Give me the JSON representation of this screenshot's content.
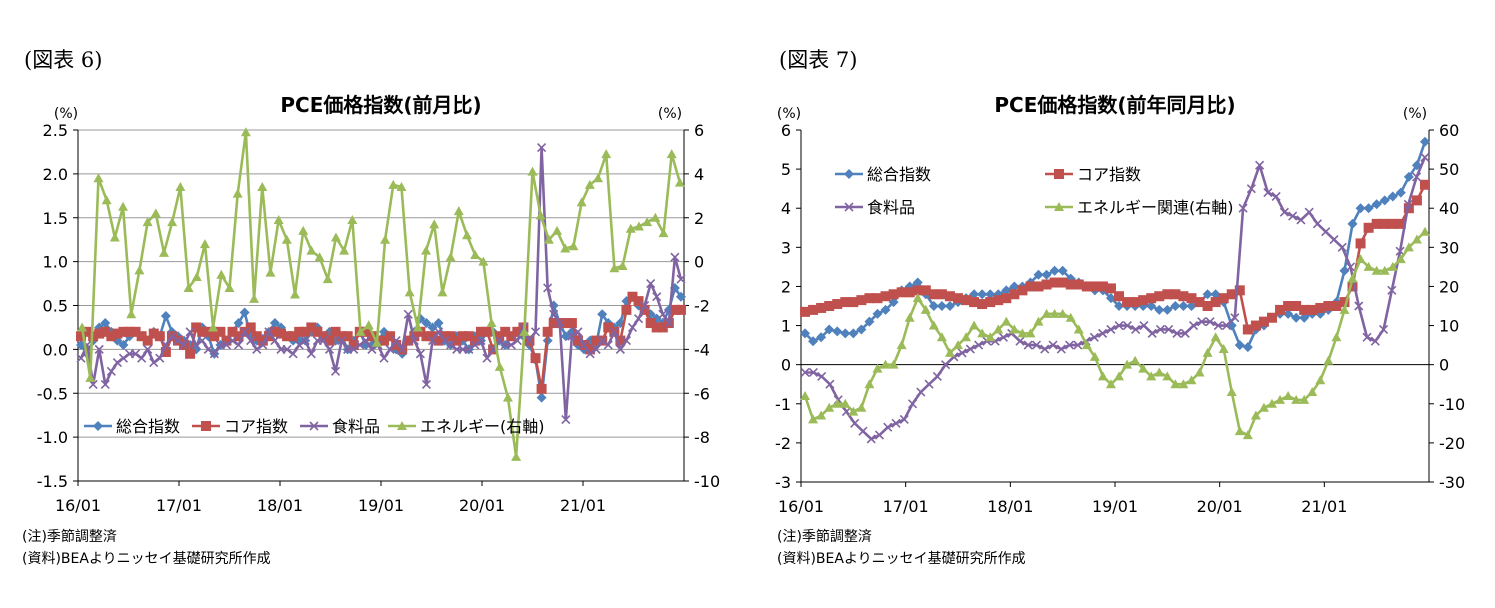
{
  "figures": [
    {
      "label": "(図表 6)",
      "notes": [
        "(注)季節調整済",
        "(資料)BEAよりニッセイ基礎研究所作成"
      ]
    },
    {
      "label": "(図表 7)",
      "notes": [
        "(注)季節調整済",
        "(資料)BEAよりニッセイ基礎研究所作成"
      ]
    }
  ],
  "chart_data": [
    {
      "type": "line",
      "title": "PCE価格指数(前月比)",
      "y_unit_left": "(%)",
      "y_unit_right": "(%)",
      "ylim": [
        -1.5,
        2.5
      ],
      "y2lim": [
        -10,
        6
      ],
      "yticks": [
        "2.5",
        "2.0",
        "1.5",
        "1.0",
        "0.5",
        "0.0",
        "-0.5",
        "-1.0",
        "-1.5"
      ],
      "y2ticks": [
        "6",
        "4",
        "2",
        "0",
        "-2",
        "-4",
        "-6",
        "-8",
        "-10"
      ],
      "xticks": [
        "16/01",
        "17/01",
        "18/01",
        "19/01",
        "20/01",
        "21/01"
      ],
      "grid": true,
      "legend": "bottom-left",
      "colors": {
        "総合指数": "#4f81bd",
        "コア指数": "#c0504d",
        "食料品": "#8064a2",
        "エネルギー": "#9bbb59"
      },
      "series": [
        {
          "name": "総合指数",
          "axis": "left",
          "marker": "diamond",
          "values": [
            0.05,
            -0.05,
            0.1,
            0.25,
            0.3,
            0.2,
            0.1,
            0.05,
            0.15,
            0.2,
            0.15,
            0.1,
            0.2,
            0.15,
            0.38,
            0.2,
            0.15,
            0.1,
            0.05,
            0.0,
            0.25,
            0.15,
            -0.05,
            0.05,
            0.1,
            0.2,
            0.3,
            0.42,
            0.15,
            0.1,
            0.12,
            0.2,
            0.3,
            0.25,
            0.15,
            0.1,
            0.1,
            0.1,
            0.2,
            0.25,
            0.15,
            0.2,
            0.1,
            0.15,
            0.0,
            0.1,
            0.2,
            0.05,
            0.05,
            0.1,
            0.2,
            0.15,
            0.0,
            -0.05,
            0.1,
            0.2,
            0.35,
            0.3,
            0.25,
            0.3,
            0.1,
            0.05,
            0.15,
            0.1,
            0.0,
            0.15,
            0.1,
            0.2,
            0.2,
            0.1,
            0.05,
            0.15,
            0.2,
            0.15,
            0.05,
            -0.12,
            -0.55,
            0.1,
            0.5,
            0.3,
            0.15,
            0.2,
            0.05,
            0.0,
            0.1,
            0.05,
            0.4,
            0.3,
            0.25,
            0.3,
            0.55,
            0.6,
            0.5,
            0.45,
            0.4,
            0.35,
            0.3,
            0.45,
            0.7,
            0.6
          ]
        },
        {
          "name": "コア指数",
          "axis": "left",
          "marker": "square",
          "values": [
            0.15,
            0.2,
            0.15,
            0.18,
            0.2,
            0.15,
            0.18,
            0.2,
            0.2,
            0.2,
            0.15,
            0.1,
            0.18,
            0.15,
            -0.03,
            0.15,
            0.1,
            0.05,
            -0.05,
            0.25,
            0.2,
            0.2,
            0.15,
            0.2,
            0.1,
            0.2,
            0.15,
            0.2,
            0.25,
            0.15,
            0.1,
            0.15,
            0.2,
            0.18,
            0.15,
            0.15,
            0.2,
            0.2,
            0.25,
            0.2,
            0.15,
            0.1,
            0.2,
            0.15,
            0.15,
            0.05,
            0.2,
            0.2,
            0.15,
            0.1,
            0.1,
            0.15,
            0.05,
            0.0,
            0.1,
            0.15,
            0.2,
            0.15,
            0.15,
            0.1,
            0.15,
            0.15,
            0.1,
            0.15,
            0.15,
            0.1,
            0.2,
            0.2,
            0.0,
            0.15,
            0.2,
            0.15,
            0.2,
            0.25,
            0.1,
            -0.1,
            -0.45,
            0.2,
            0.3,
            0.3,
            0.3,
            0.3,
            0.1,
            0.05,
            0.0,
            0.1,
            0.1,
            0.25,
            0.2,
            0.1,
            0.45,
            0.6,
            0.55,
            0.45,
            0.3,
            0.25,
            0.25,
            0.3,
            0.45,
            0.45
          ]
        },
        {
          "name": "食料品",
          "axis": "left",
          "marker": "x",
          "values": [
            -0.1,
            0.05,
            -0.4,
            0.0,
            -0.4,
            -0.25,
            -0.15,
            -0.1,
            -0.05,
            -0.05,
            -0.1,
            0.0,
            -0.15,
            -0.1,
            0.05,
            0.15,
            0.1,
            0.05,
            0.2,
            0.05,
            0.1,
            0.0,
            -0.05,
            0.05,
            0.05,
            0.1,
            0.05,
            0.2,
            0.1,
            0.0,
            0.05,
            0.2,
            0.1,
            0.0,
            0.0,
            -0.05,
            0.05,
            0.1,
            -0.05,
            0.1,
            0.1,
            0.0,
            -0.25,
            0.1,
            0.0,
            0.0,
            0.05,
            0.1,
            0.0,
            0.05,
            -0.1,
            0.0,
            0.1,
            0.0,
            0.4,
            0.1,
            -0.05,
            -0.4,
            0.1,
            0.2,
            0.1,
            0.05,
            0.0,
            0.0,
            0.0,
            0.05,
            0.1,
            -0.1,
            0.0,
            0.1,
            0.05,
            0.05,
            0.1,
            0.25,
            0.1,
            0.2,
            2.3,
            0.7,
            0.4,
            0.3,
            -0.8,
            0.15,
            0.2,
            0.05,
            -0.05,
            0.0,
            0.1,
            0.05,
            0.2,
            0.0,
            0.1,
            0.25,
            0.35,
            0.5,
            0.75,
            0.6,
            0.4,
            0.3,
            1.05,
            0.8
          ]
        },
        {
          "name": "エネルギー(右軸)",
          "axis": "right",
          "marker": "triangle",
          "values": [
            -3.0,
            -5.3,
            3.8,
            2.8,
            1.1,
            2.5,
            -2.4,
            -0.4,
            1.8,
            2.2,
            0.4,
            1.8,
            3.4,
            -1.2,
            -0.7,
            0.8,
            -3.0,
            -0.6,
            -1.2,
            3.1,
            5.9,
            -1.7,
            3.4,
            -0.5,
            1.9,
            1.0,
            -1.5,
            1.4,
            0.5,
            0.2,
            -0.8,
            1.1,
            0.5,
            1.9,
            -3.2,
            -2.9,
            -3.7,
            1.0,
            3.5,
            3.4,
            -1.4,
            -3.0,
            0.5,
            1.7,
            -1.4,
            0.2,
            2.3,
            1.2,
            0.3,
            0.0,
            -2.8,
            -4.8,
            -6.2,
            -8.9,
            -3.2,
            4.1,
            2.1,
            1.0,
            1.4,
            0.6,
            0.7,
            2.7,
            3.5,
            3.8,
            4.9,
            -0.3,
            -0.2,
            1.5,
            1.6,
            1.8,
            2.0,
            1.3,
            4.9,
            3.6
          ]
        }
      ]
    },
    {
      "type": "line",
      "title": "PCE価格指数(前年同月比)",
      "y_unit_left": "(%)",
      "y_unit_right": "(%)",
      "ylim": [
        -3,
        6
      ],
      "y2lim": [
        -30,
        60
      ],
      "yticks": [
        "6",
        "5",
        "4",
        "3",
        "2",
        "1",
        "0",
        "-1",
        "-2",
        "-3"
      ],
      "y2ticks": [
        "60",
        "50",
        "40",
        "30",
        "20",
        "10",
        "0",
        "-10",
        "-20",
        "-30"
      ],
      "xticks": [
        "16/01",
        "17/01",
        "18/01",
        "19/01",
        "20/01",
        "21/01"
      ],
      "grid": false,
      "legend": "top-left",
      "colors": {
        "総合指数": "#4f81bd",
        "コア指数": "#c0504d",
        "食料品": "#8064a2",
        "エネルギー": "#9bbb59"
      },
      "series": [
        {
          "name": "総合指数",
          "axis": "left",
          "marker": "diamond",
          "values": [
            0.8,
            0.6,
            0.7,
            0.9,
            0.85,
            0.8,
            0.8,
            0.9,
            1.1,
            1.3,
            1.4,
            1.6,
            1.9,
            2.0,
            2.1,
            1.8,
            1.5,
            1.5,
            1.5,
            1.6,
            1.7,
            1.8,
            1.8,
            1.8,
            1.8,
            1.9,
            2.0,
            2.0,
            2.1,
            2.3,
            2.3,
            2.4,
            2.4,
            2.2,
            2.1,
            2.0,
            1.9,
            1.9,
            1.7,
            1.5,
            1.5,
            1.5,
            1.5,
            1.5,
            1.4,
            1.4,
            1.5,
            1.5,
            1.5,
            1.6,
            1.8,
            1.8,
            1.6,
            1.0,
            0.5,
            0.45,
            0.9,
            1.0,
            1.2,
            1.3,
            1.3,
            1.2,
            1.2,
            1.3,
            1.3,
            1.4,
            1.6,
            2.4,
            3.6,
            4.0,
            4.0,
            4.1,
            4.2,
            4.3,
            4.4,
            4.8,
            5.1,
            5.7
          ]
        },
        {
          "name": "コア指数",
          "axis": "left",
          "marker": "square",
          "values": [
            1.35,
            1.4,
            1.45,
            1.5,
            1.55,
            1.6,
            1.6,
            1.65,
            1.7,
            1.7,
            1.75,
            1.8,
            1.85,
            1.85,
            1.9,
            1.9,
            1.8,
            1.8,
            1.75,
            1.7,
            1.65,
            1.6,
            1.55,
            1.6,
            1.65,
            1.7,
            1.8,
            1.9,
            2.0,
            2.0,
            2.05,
            2.1,
            2.1,
            2.05,
            2.05,
            2.0,
            2.0,
            2.0,
            1.95,
            1.75,
            1.6,
            1.6,
            1.65,
            1.7,
            1.75,
            1.8,
            1.8,
            1.75,
            1.7,
            1.6,
            1.5,
            1.6,
            1.7,
            1.8,
            1.9,
            0.9,
            1.0,
            1.1,
            1.2,
            1.4,
            1.5,
            1.5,
            1.4,
            1.4,
            1.45,
            1.5,
            1.5,
            1.6,
            2.0,
            3.1,
            3.5,
            3.6,
            3.6,
            3.6,
            3.6,
            4.0,
            4.2,
            4.6
          ]
        },
        {
          "name": "食料品",
          "axis": "left",
          "marker": "x",
          "values": [
            -0.2,
            -0.2,
            -0.3,
            -0.5,
            -0.9,
            -1.2,
            -1.5,
            -1.7,
            -1.9,
            -1.8,
            -1.6,
            -1.5,
            -1.4,
            -1.0,
            -0.7,
            -0.5,
            -0.3,
            0.0,
            0.2,
            0.3,
            0.4,
            0.5,
            0.6,
            0.6,
            0.7,
            0.8,
            0.6,
            0.5,
            0.5,
            0.4,
            0.5,
            0.4,
            0.5,
            0.5,
            0.6,
            0.7,
            0.8,
            0.9,
            1.0,
            1.0,
            0.9,
            1.0,
            0.8,
            0.9,
            0.9,
            0.8,
            0.8,
            1.0,
            1.1,
            1.1,
            1.0,
            1.0,
            1.2,
            4.0,
            4.5,
            5.1,
            4.4,
            4.3,
            3.9,
            3.8,
            3.7,
            3.9,
            3.6,
            3.4,
            3.2,
            3.0,
            2.5,
            1.5,
            0.7,
            0.6,
            0.9,
            1.9,
            2.9,
            4.1,
            4.8,
            5.3
          ]
        },
        {
          "name": "エネルギー関連(右軸)",
          "axis": "right",
          "marker": "triangle",
          "values": [
            -8,
            -14,
            -13,
            -11,
            -10,
            -10,
            -12,
            -11,
            -5,
            -1,
            0,
            0,
            5,
            12,
            17,
            14,
            10,
            7,
            3,
            5,
            7,
            10,
            8,
            7,
            9,
            11,
            9,
            8,
            8,
            11,
            13,
            13,
            13,
            12,
            9,
            5,
            2,
            -3,
            -5,
            -3,
            0,
            1,
            -1,
            -3,
            -2,
            -3,
            -5,
            -5,
            -4,
            -2,
            3,
            7,
            4,
            -7,
            -17,
            -18,
            -13,
            -11,
            -10,
            -9,
            -8,
            -9,
            -9,
            -7,
            -4,
            1,
            7,
            14,
            22,
            27,
            25,
            24,
            24,
            25,
            27,
            30,
            32,
            34
          ]
        }
      ]
    }
  ]
}
